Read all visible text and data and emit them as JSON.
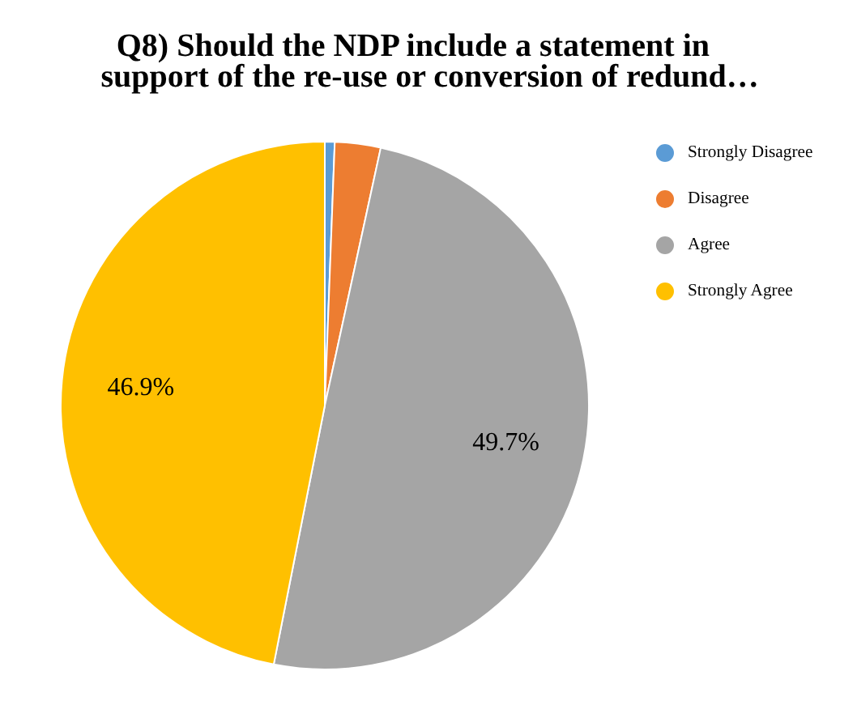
{
  "chart_data": {
    "type": "pie",
    "title": "Q8)     Should the NDP include a statement in\nsupport of the re-use or conversion of redund…",
    "categories": [
      "Strongly Disagree",
      "Disagree",
      "Agree",
      "Strongly Agree"
    ],
    "values": [
      0.6,
      2.8,
      49.7,
      46.9
    ],
    "colors": [
      "#5b9bd5",
      "#ed7d31",
      "#a5a5a5",
      "#ffc000"
    ],
    "value_labels": [
      null,
      null,
      "49.7%",
      "46.9%"
    ],
    "legend": "top right"
  }
}
